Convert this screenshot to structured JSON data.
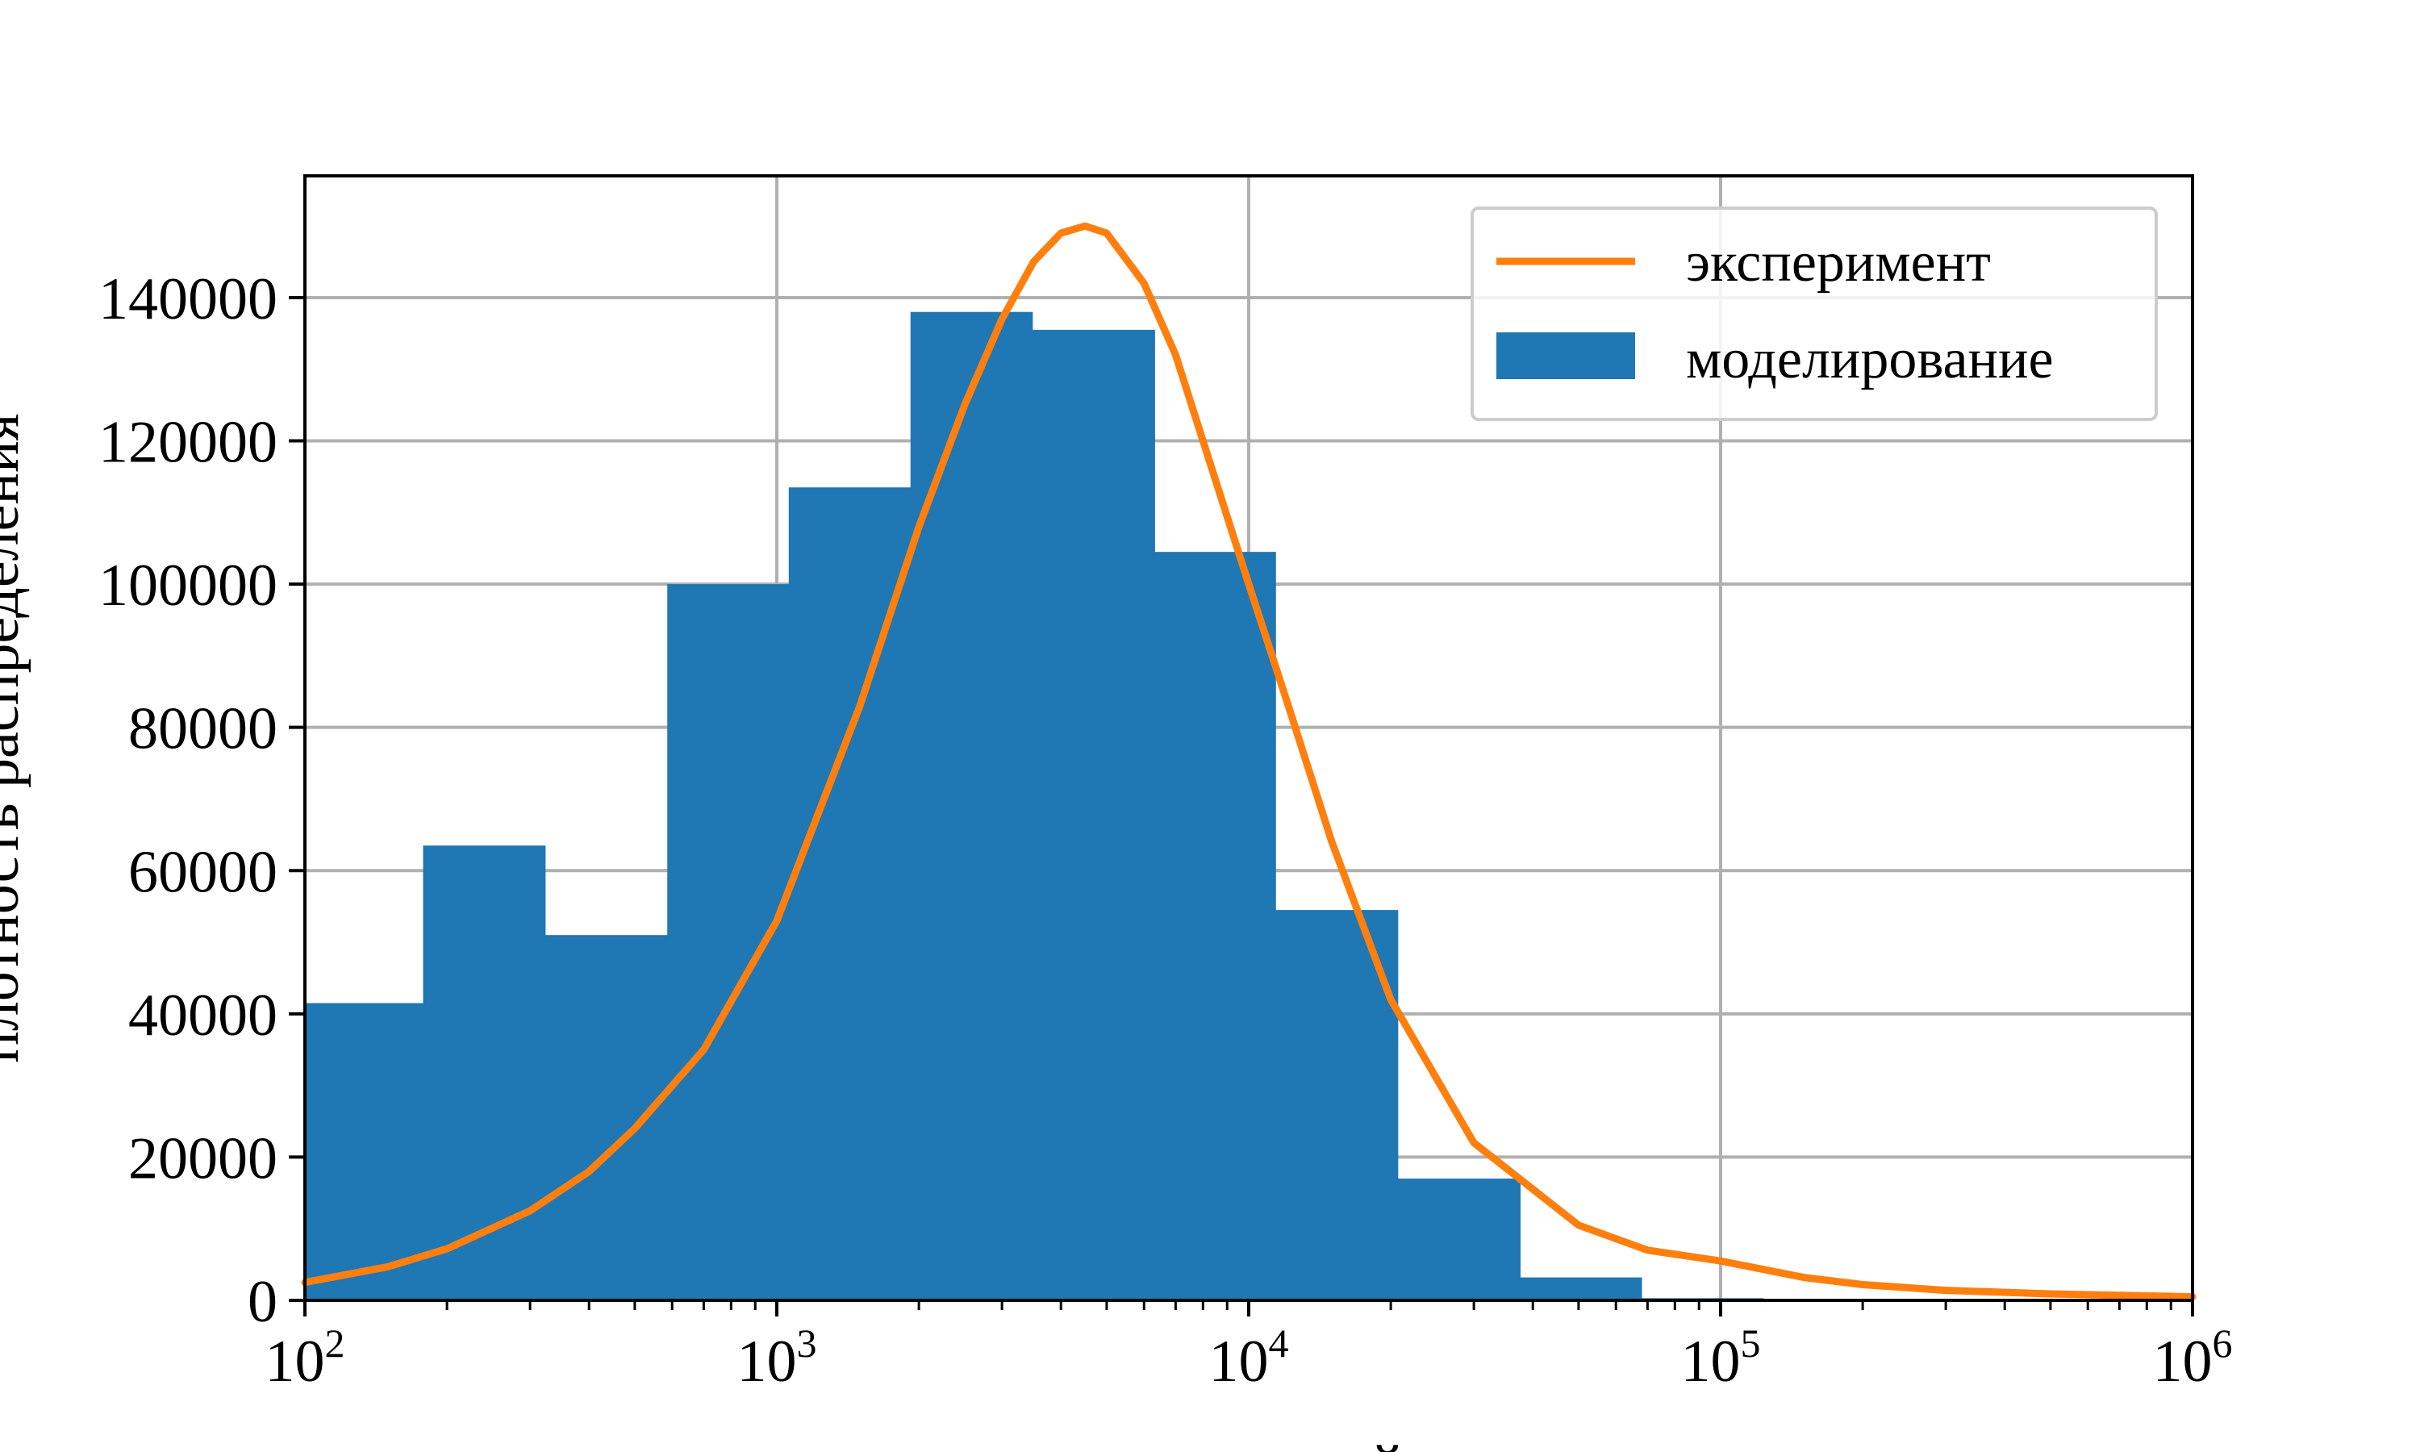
{
  "chart_data": {
    "type": "bar",
    "xscale": "log",
    "xlim": [
      100,
      1000000
    ],
    "ylim": [
      0,
      157000
    ],
    "grid": true,
    "legend_position": "top-right",
    "xlabel": "й",
    "ylabel": "плотность распределения",
    "x_tick_labels": [
      {
        "base": "10",
        "exp": "2",
        "value": 100
      },
      {
        "base": "10",
        "exp": "3",
        "value": 1000
      },
      {
        "base": "10",
        "exp": "4",
        "value": 10000
      },
      {
        "base": "10",
        "exp": "5",
        "value": 100000
      },
      {
        "base": "10",
        "exp": "6",
        "value": 1000000
      }
    ],
    "y_ticks": [
      0,
      20000,
      40000,
      60000,
      80000,
      100000,
      120000,
      140000
    ],
    "y_tick_labels": [
      "0",
      "20000",
      "40000",
      "60000",
      "80000",
      "100000",
      "120000",
      "140000"
    ],
    "series": [
      {
        "name": "эксперимент",
        "kind": "line",
        "color": "#ff7f0e",
        "points": [
          [
            100,
            2500
          ],
          [
            150,
            4700
          ],
          [
            200,
            7200
          ],
          [
            300,
            12500
          ],
          [
            400,
            18000
          ],
          [
            500,
            24000
          ],
          [
            700,
            35000
          ],
          [
            1000,
            53000
          ],
          [
            1500,
            83000
          ],
          [
            2000,
            108000
          ],
          [
            2500,
            125000
          ],
          [
            3000,
            137000
          ],
          [
            3500,
            145000
          ],
          [
            4000,
            149000
          ],
          [
            4500,
            150000
          ],
          [
            5000,
            149000
          ],
          [
            6000,
            142000
          ],
          [
            7000,
            132000
          ],
          [
            8000,
            120000
          ],
          [
            10000,
            100000
          ],
          [
            12000,
            84000
          ],
          [
            15000,
            64000
          ],
          [
            20000,
            42000
          ],
          [
            30000,
            22000
          ],
          [
            50000,
            10500
          ],
          [
            70000,
            7000
          ],
          [
            100000,
            5500
          ],
          [
            150000,
            3200
          ],
          [
            200000,
            2200
          ],
          [
            300000,
            1400
          ],
          [
            500000,
            900
          ],
          [
            1000000,
            500
          ]
        ]
      },
      {
        "name": "моделирование",
        "kind": "histogram",
        "color": "#1f77b4",
        "bins": [
          {
            "x0": 100,
            "x1": 178,
            "value": 41500
          },
          {
            "x0": 178,
            "x1": 323,
            "value": 63500
          },
          {
            "x0": 323,
            "x1": 586,
            "value": 51000
          },
          {
            "x0": 586,
            "x1": 1060,
            "value": 100000
          },
          {
            "x0": 1060,
            "x1": 1920,
            "value": 113500
          },
          {
            "x0": 1920,
            "x1": 3480,
            "value": 138000
          },
          {
            "x0": 3480,
            "x1": 6320,
            "value": 135500
          },
          {
            "x0": 6320,
            "x1": 11400,
            "value": 104500
          },
          {
            "x0": 11400,
            "x1": 20700,
            "value": 54500
          },
          {
            "x0": 20700,
            "x1": 37600,
            "value": 17000
          },
          {
            "x0": 37600,
            "x1": 68000,
            "value": 3200
          },
          {
            "x0": 68000,
            "x1": 123000,
            "value": 300
          }
        ]
      }
    ]
  }
}
